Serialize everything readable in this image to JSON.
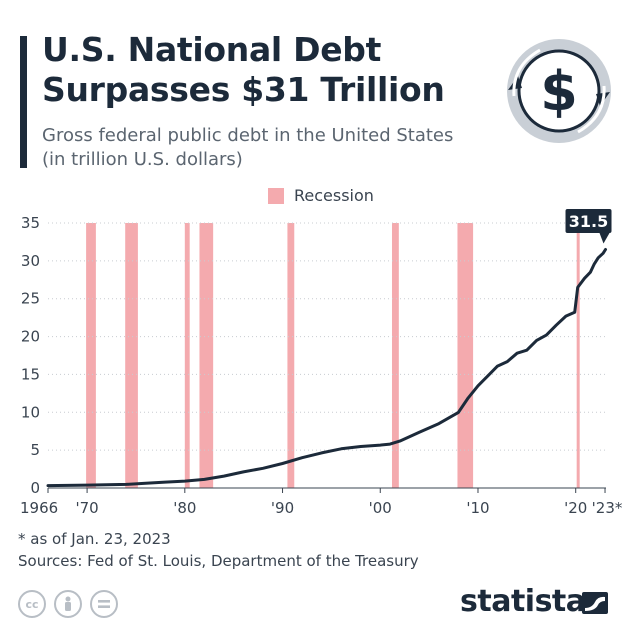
{
  "title_line1": "U.S. National Debt",
  "title_line2": "Surpasses $31 Trillion",
  "subtitle_line1": "Gross federal public debt in the United States",
  "subtitle_line2": "(in trillion U.S. dollars)",
  "legend": {
    "label": "Recession",
    "color": "#f4aaae"
  },
  "footnote": "* as of Jan. 23, 2023",
  "sources": "Sources: Fed of St. Louis, Department of the Treasury",
  "brand": "statista",
  "icons": {
    "logo": "dollar-coin-icon",
    "license": [
      "cc-icon",
      "attribution-icon",
      "no-derivatives-icon"
    ],
    "brand": "statista-wave-icon"
  },
  "colors": {
    "line": "#1c2a3a",
    "recession": "#f4aaae",
    "callout": "#1c2a3a",
    "text": "#1f2a36"
  },
  "chart_data": {
    "type": "line",
    "title": "U.S. National Debt Surpasses $31 Trillion",
    "ylabel": "",
    "xlabel": "",
    "xlim": [
      1966,
      2023.1
    ],
    "ylim": [
      0,
      35
    ],
    "yticks": [
      0,
      5,
      10,
      15,
      20,
      25,
      30,
      35
    ],
    "xticks": [
      {
        "value": 1966,
        "label": "1966"
      },
      {
        "value": 1970,
        "label": "'70"
      },
      {
        "value": 1980,
        "label": "'80"
      },
      {
        "value": 1990,
        "label": "'90"
      },
      {
        "value": 2000,
        "label": "'00"
      },
      {
        "value": 2010,
        "label": "'10"
      },
      {
        "value": 2020,
        "label": "'20"
      },
      {
        "value": 2023,
        "label": "'23*"
      }
    ],
    "grid": true,
    "recessions": [
      [
        1969.9,
        1970.9
      ],
      [
        1973.9,
        1975.2
      ],
      [
        1980.0,
        1980.5
      ],
      [
        1981.5,
        1982.9
      ],
      [
        1990.5,
        1991.2
      ],
      [
        2001.2,
        2001.9
      ],
      [
        2007.9,
        2009.5
      ],
      [
        2020.1,
        2020.4
      ]
    ],
    "series": [
      {
        "values": [
          [
            1966,
            0.32
          ],
          [
            1968,
            0.35
          ],
          [
            1970,
            0.38
          ],
          [
            1972,
            0.43
          ],
          [
            1974,
            0.48
          ],
          [
            1976,
            0.62
          ],
          [
            1978,
            0.78
          ],
          [
            1980,
            0.91
          ],
          [
            1982,
            1.14
          ],
          [
            1984,
            1.57
          ],
          [
            1986,
            2.12
          ],
          [
            1988,
            2.6
          ],
          [
            1990,
            3.23
          ],
          [
            1992,
            4.0
          ],
          [
            1994,
            4.64
          ],
          [
            1996,
            5.18
          ],
          [
            1998,
            5.48
          ],
          [
            2000,
            5.67
          ],
          [
            2001,
            5.8
          ],
          [
            2002,
            6.2
          ],
          [
            2004,
            7.35
          ],
          [
            2006,
            8.5
          ],
          [
            2008,
            9.99
          ],
          [
            2009,
            11.9
          ],
          [
            2010,
            13.5
          ],
          [
            2011,
            14.8
          ],
          [
            2012,
            16.1
          ],
          [
            2013,
            16.7
          ],
          [
            2014,
            17.8
          ],
          [
            2015,
            18.2
          ],
          [
            2016,
            19.5
          ],
          [
            2017,
            20.2
          ],
          [
            2018,
            21.5
          ],
          [
            2019,
            22.7
          ],
          [
            2019.9,
            23.2
          ],
          [
            2020.2,
            26.5
          ],
          [
            2020.9,
            27.7
          ],
          [
            2021.5,
            28.5
          ],
          [
            2021.9,
            29.6
          ],
          [
            2022.3,
            30.4
          ],
          [
            2022.8,
            31.0
          ],
          [
            2023.05,
            31.5
          ]
        ]
      }
    ],
    "annotation": {
      "label": "31.5",
      "x": 2023.05,
      "y": 31.5
    }
  }
}
